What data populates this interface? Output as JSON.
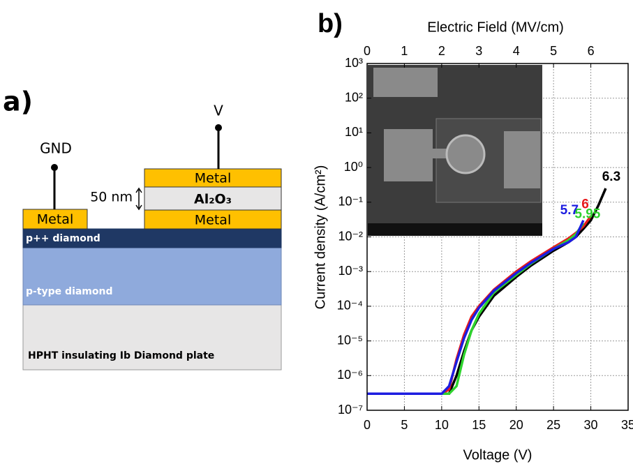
{
  "diagram": {
    "panel_label": "a)",
    "gnd": "GND",
    "v": "V",
    "metal_left": "Metal",
    "metal_top": "Metal",
    "metal_bottom": "Metal",
    "thickness": "50 nm",
    "oxide": "Al₂O₃",
    "p_plus": "p++ diamond",
    "p_type": "p-type diamond",
    "substrate": "HPHT insulating Ib Diamond plate"
  },
  "chart_data": {
    "type": "line",
    "panel_label": "b)",
    "x_label": "Voltage (V)",
    "x2_label": "Electric Field (MV/cm)",
    "y_label": "Current density (A/cm²)",
    "log_y": true,
    "grid": true,
    "x": [
      0,
      2,
      4,
      6,
      8,
      10,
      11,
      12,
      13,
      14,
      15,
      17,
      20,
      22,
      25,
      27,
      28,
      29,
      30,
      31,
      32
    ],
    "xlim": [
      0,
      35
    ],
    "xticks": [
      0,
      5,
      10,
      15,
      20,
      25,
      30,
      35
    ],
    "x2lim": [
      0,
      7
    ],
    "x2ticks": [
      0,
      1,
      2,
      3,
      4,
      5,
      6
    ],
    "ylim": [
      1e-07,
      1000
    ],
    "yticks": [
      {
        "value": 1e-07,
        "label": "10⁻⁷"
      },
      {
        "value": 1e-06,
        "label": "10⁻⁶"
      },
      {
        "value": 1e-05,
        "label": "10⁻⁵"
      },
      {
        "value": 0.0001,
        "label": "10⁻⁴"
      },
      {
        "value": 0.001,
        "label": "10⁻³"
      },
      {
        "value": 0.01,
        "label": "10⁻²"
      },
      {
        "value": 0.1,
        "label": "10⁻¹"
      },
      {
        "value": 1,
        "label": "10⁰"
      },
      {
        "value": 10,
        "label": "10¹"
      },
      {
        "value": 100,
        "label": "10²"
      },
      {
        "value": 1000,
        "label": "10³"
      }
    ],
    "series": [
      {
        "name": "6.3",
        "color": "#000000",
        "values": [
          3e-07,
          3e-07,
          3e-07,
          3e-07,
          3e-07,
          3e-07,
          3e-07,
          1e-06,
          5e-06,
          2e-05,
          5e-05,
          0.0002,
          0.0007,
          0.0015,
          0.004,
          0.007,
          0.01,
          0.017,
          0.03,
          0.08,
          0.25
        ]
      },
      {
        "name": "6",
        "color": "#e8191c",
        "values": [
          3e-07,
          3e-07,
          3e-07,
          3e-07,
          3e-07,
          3e-07,
          4e-07,
          3e-06,
          1.5e-05,
          5e-05,
          0.0001,
          0.0003,
          0.001,
          0.002,
          0.005,
          0.009,
          0.013,
          0.02,
          0.04,
          null,
          null
        ]
      },
      {
        "name": "5.95",
        "color": "#2ed32e",
        "values": [
          3e-07,
          3e-07,
          3e-07,
          3e-07,
          3e-07,
          3e-07,
          3e-07,
          5e-07,
          4e-06,
          2e-05,
          6e-05,
          0.00025,
          0.0008,
          0.0017,
          0.0045,
          0.008,
          0.012,
          0.025,
          null,
          null,
          null
        ]
      },
      {
        "name": "5.7",
        "color": "#1c1ce0",
        "values": [
          3e-07,
          3e-07,
          3e-07,
          3e-07,
          3e-07,
          3e-07,
          5e-07,
          2.5e-06,
          1.2e-05,
          4e-05,
          9e-05,
          0.00028,
          0.0009,
          0.0018,
          0.0045,
          0.007,
          0.01,
          0.03,
          null,
          null,
          null
        ]
      }
    ]
  }
}
